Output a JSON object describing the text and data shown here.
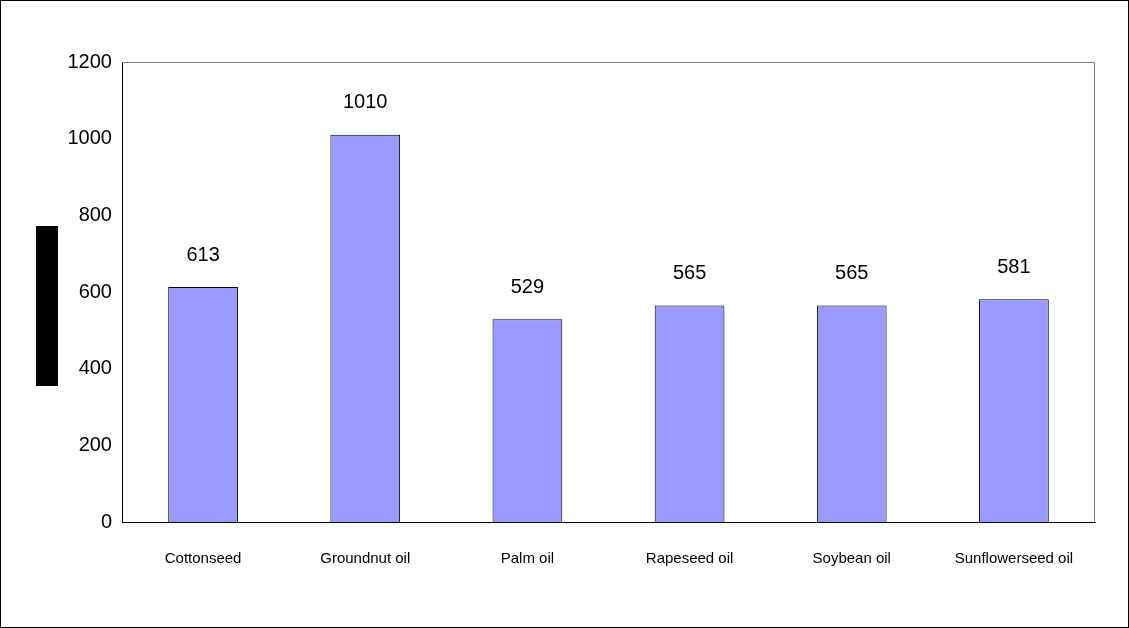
{
  "chart_data": {
    "type": "bar",
    "categories": [
      "Cottonseed",
      "Groundnut oil",
      "Palm oil",
      "Rapeseed oil",
      "Soybean oil",
      "Sunflowerseed oil"
    ],
    "values": [
      613,
      1010,
      529,
      565,
      565,
      581
    ],
    "color": "#9999ff",
    "ylim": [
      0,
      1200
    ],
    "yticks": [
      0,
      200,
      400,
      600,
      800,
      1000,
      1200
    ],
    "data_labels": true,
    "legend": false,
    "grid": false
  }
}
